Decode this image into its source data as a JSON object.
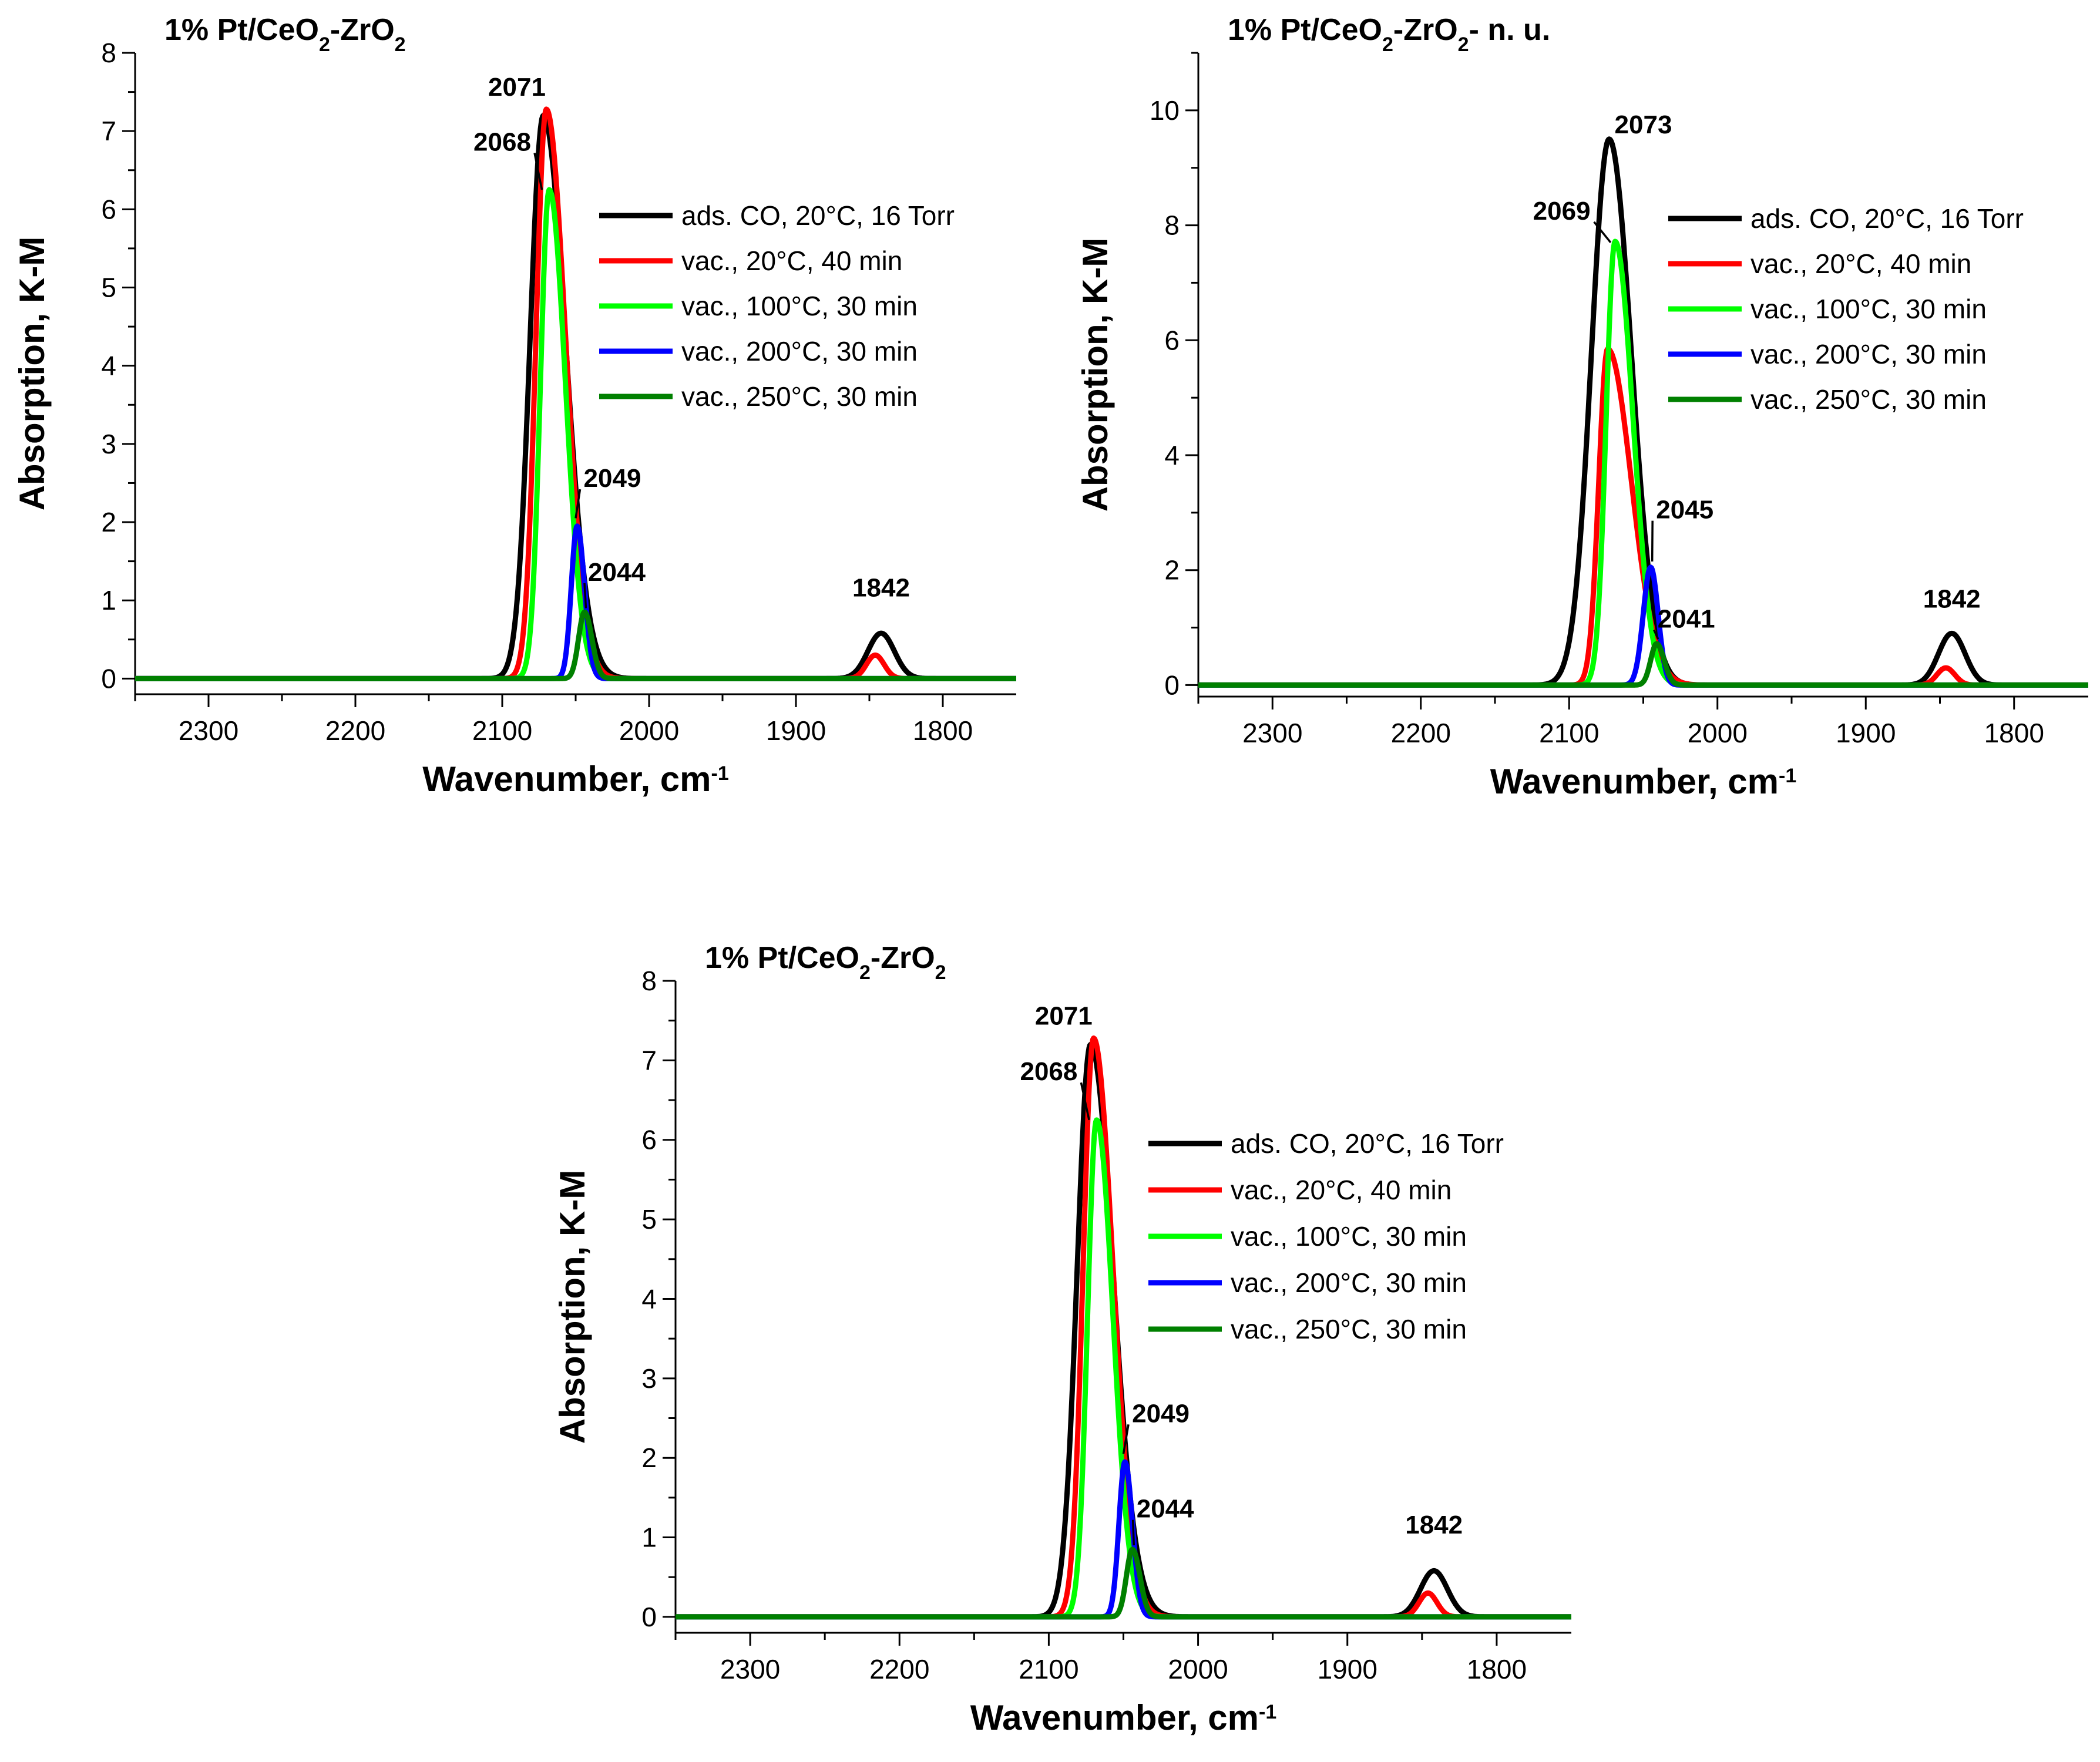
{
  "chart_data": [
    {
      "type": "line",
      "title": {
        "parts": [
          "1% Pt/CeO",
          "2",
          "-ZrO",
          "2",
          ""
        ]
      },
      "xlabel": {
        "text": "Wavenumber, cm",
        "sup": "-1"
      },
      "ylabel": "Absorption, K-M",
      "xlim": [
        2350,
        1750
      ],
      "ylim": [
        -0.2,
        8
      ],
      "xticks": [
        2300,
        2200,
        2100,
        2000,
        1900,
        1800
      ],
      "yticks": [
        0,
        1,
        2,
        3,
        4,
        5,
        6,
        7,
        8
      ],
      "legend_pos": "right",
      "legend": [
        {
          "text": "ads. CO, 20°C, 16 Torr",
          "color": "#000000"
        },
        {
          "text": "vac., 20°C, 40 min",
          "color": "#ff0000"
        },
        {
          "text": "vac., 100°C, 30 min",
          "color": "#00ff00"
        },
        {
          "text": "vac., 200°C, 30 min",
          "color": "#0000ff"
        },
        {
          "text": "vac., 250°C, 30 min",
          "color": "#008000"
        }
      ],
      "series": [
        {
          "name": "ads. CO, 20°C, 16 Torr",
          "color": "#000000",
          "peaks": [
            {
              "center": 2072,
              "height": 7.2,
              "sigmaL": 9,
              "sigmaR": 15
            },
            {
              "center": 1842,
              "height": 0.58,
              "sigmaL": 9,
              "sigmaR": 9
            }
          ]
        },
        {
          "name": "vac., 20°C, 40 min",
          "color": "#ff0000",
          "peaks": [
            {
              "center": 2070,
              "height": 7.28,
              "sigmaL": 7,
              "sigmaR": 13
            },
            {
              "center": 1846,
              "height": 0.3,
              "sigmaL": 6,
              "sigmaR": 6
            }
          ]
        },
        {
          "name": "vac., 100°C, 30 min",
          "color": "#00ff00",
          "peaks": [
            {
              "center": 2068,
              "height": 6.25,
              "sigmaL": 6,
              "sigmaR": 11
            }
          ]
        },
        {
          "name": "vac., 200°C, 30 min",
          "color": "#0000ff",
          "peaks": [
            {
              "center": 2049,
              "height": 1.95,
              "sigmaL": 4,
              "sigmaR": 5
            }
          ]
        },
        {
          "name": "vac., 250°C, 30 min",
          "color": "#008000",
          "peaks": [
            {
              "center": 2044,
              "height": 0.85,
              "sigmaL": 4,
              "sigmaR": 5
            }
          ]
        }
      ],
      "annotations": [
        {
          "text": "2071",
          "x": 2090,
          "y": 7.45
        },
        {
          "text": "2068",
          "x": 2100,
          "y": 6.75,
          "ax": 2073,
          "ay": 6.25
        },
        {
          "text": "2049",
          "x": 2025,
          "y": 2.45,
          "ax": 2050,
          "ay": 2.05
        },
        {
          "text": "2044",
          "x": 2022,
          "y": 1.25,
          "ax": 2043,
          "ay": 0.9
        },
        {
          "text": "1842",
          "x": 1842,
          "y": 1.05
        }
      ]
    },
    {
      "type": "line",
      "title": {
        "parts": [
          "1% Pt/CeO",
          "2",
          "-ZrO",
          "2",
          "- n. u."
        ]
      },
      "xlabel": {
        "text": "Wavenumber, cm",
        "sup": "-1"
      },
      "ylabel": "Absorption, K-M",
      "xlim": [
        2350,
        1750
      ],
      "ylim": [
        -0.2,
        11
      ],
      "xticks": [
        2300,
        2200,
        2100,
        2000,
        1900,
        1800
      ],
      "yticks": [
        0,
        2,
        4,
        6,
        8,
        10
      ],
      "legend_pos": "right",
      "legend": [
        {
          "text": "ads. CO, 20°C, 16 Torr",
          "color": "#000000"
        },
        {
          "text": "vac., 20°C, 40 min",
          "color": "#ff0000"
        },
        {
          "text": "vac., 100°C, 30 min",
          "color": "#00ff00"
        },
        {
          "text": "vac., 200°C, 30 min",
          "color": "#0000ff"
        },
        {
          "text": "vac., 250°C, 30 min",
          "color": "#008000"
        }
      ],
      "series": [
        {
          "name": "ads. CO, 20°C, 16 Torr",
          "color": "#000000",
          "peaks": [
            {
              "center": 2073,
              "height": 9.5,
              "sigmaL": 12,
              "sigmaR": 15
            },
            {
              "center": 1842,
              "height": 0.9,
              "sigmaL": 9,
              "sigmaR": 9
            }
          ]
        },
        {
          "name": "vac., 20°C, 40 min",
          "color": "#ff0000",
          "peaks": [
            {
              "center": 2074,
              "height": 5.85,
              "sigmaL": 6,
              "sigmaR": 16
            },
            {
              "center": 1846,
              "height": 0.3,
              "sigmaL": 6,
              "sigmaR": 6
            }
          ]
        },
        {
          "name": "vac., 100°C, 30 min",
          "color": "#00ff00",
          "peaks": [
            {
              "center": 2069,
              "height": 7.72,
              "sigmaL": 6,
              "sigmaR": 12
            }
          ]
        },
        {
          "name": "vac., 200°C, 30 min",
          "color": "#0000ff",
          "peaks": [
            {
              "center": 2045,
              "height": 2.05,
              "sigmaL": 5,
              "sigmaR": 5
            }
          ]
        },
        {
          "name": "vac., 250°C, 30 min",
          "color": "#008000",
          "peaks": [
            {
              "center": 2041,
              "height": 0.72,
              "sigmaL": 4,
              "sigmaR": 5
            }
          ]
        }
      ],
      "annotations": [
        {
          "text": "2073",
          "x": 2050,
          "y": 9.6
        },
        {
          "text": "2069",
          "x": 2105,
          "y": 8.1,
          "ax": 2072,
          "ay": 7.7
        },
        {
          "text": "2045",
          "x": 2022,
          "y": 2.9,
          "ax": 2044,
          "ay": 2.15
        },
        {
          "text": "2041",
          "x": 2021,
          "y": 1.0,
          "ax": 2040,
          "ay": 0.8
        },
        {
          "text": "1842",
          "x": 1842,
          "y": 1.35
        }
      ]
    },
    {
      "type": "line",
      "title": {
        "parts": [
          "1% Pt/CeO",
          "2",
          "-ZrO",
          "2",
          ""
        ]
      },
      "xlabel": {
        "text": "Wavenumber, cm",
        "sup": "-1"
      },
      "ylabel": "Absorption, K-M",
      "xlim": [
        2350,
        1750
      ],
      "ylim": [
        -0.2,
        8
      ],
      "xticks": [
        2300,
        2200,
        2100,
        2000,
        1900,
        1800
      ],
      "yticks": [
        0,
        1,
        2,
        3,
        4,
        5,
        6,
        7,
        8
      ],
      "legend_pos": "right",
      "legend": [
        {
          "text": "ads. CO, 20°C, 16 Torr",
          "color": "#000000"
        },
        {
          "text": "vac., 20°C, 40 min",
          "color": "#ff0000"
        },
        {
          "text": "vac., 100°C, 30 min",
          "color": "#00ff00"
        },
        {
          "text": "vac., 200°C, 30 min",
          "color": "#0000ff"
        },
        {
          "text": "vac., 250°C, 30 min",
          "color": "#008000"
        }
      ],
      "series": [
        {
          "name": "ads. CO, 20°C, 16 Torr",
          "color": "#000000",
          "peaks": [
            {
              "center": 2072,
              "height": 7.2,
              "sigmaL": 9,
              "sigmaR": 15
            },
            {
              "center": 1842,
              "height": 0.58,
              "sigmaL": 9,
              "sigmaR": 9
            }
          ]
        },
        {
          "name": "vac., 20°C, 40 min",
          "color": "#ff0000",
          "peaks": [
            {
              "center": 2070,
              "height": 7.28,
              "sigmaL": 7,
              "sigmaR": 13
            },
            {
              "center": 1846,
              "height": 0.3,
              "sigmaL": 6,
              "sigmaR": 6
            }
          ]
        },
        {
          "name": "vac., 100°C, 30 min",
          "color": "#00ff00",
          "peaks": [
            {
              "center": 2068,
              "height": 6.25,
              "sigmaL": 6,
              "sigmaR": 11
            }
          ]
        },
        {
          "name": "vac., 200°C, 30 min",
          "color": "#0000ff",
          "peaks": [
            {
              "center": 2049,
              "height": 1.95,
              "sigmaL": 4,
              "sigmaR": 5
            }
          ]
        },
        {
          "name": "vac., 250°C, 30 min",
          "color": "#008000",
          "peaks": [
            {
              "center": 2044,
              "height": 0.85,
              "sigmaL": 4,
              "sigmaR": 5
            }
          ]
        }
      ],
      "annotations": [
        {
          "text": "2071",
          "x": 2090,
          "y": 7.45
        },
        {
          "text": "2068",
          "x": 2100,
          "y": 6.75,
          "ax": 2073,
          "ay": 6.25
        },
        {
          "text": "2049",
          "x": 2025,
          "y": 2.45,
          "ax": 2050,
          "ay": 2.05
        },
        {
          "text": "2044",
          "x": 2022,
          "y": 1.25,
          "ax": 2043,
          "ay": 0.9
        },
        {
          "text": "1842",
          "x": 1842,
          "y": 1.05
        }
      ]
    }
  ]
}
